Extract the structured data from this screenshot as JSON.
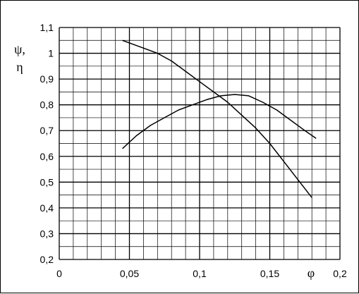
{
  "chart_data": {
    "type": "line",
    "title": "",
    "xlabel": "φ",
    "ylabel_lines": [
      "ψ,",
      "η"
    ],
    "xlim": [
      0,
      0.2
    ],
    "ylim": [
      0.2,
      1.1
    ],
    "x_ticks": [
      {
        "value": 0,
        "label": "0"
      },
      {
        "value": 0.05,
        "label": "0,05"
      },
      {
        "value": 0.1,
        "label": "0,1"
      },
      {
        "value": 0.15,
        "label": "0,15"
      },
      {
        "value": 0.2,
        "label": "0,2"
      }
    ],
    "y_ticks": [
      {
        "value": 0.2,
        "label": "0,2"
      },
      {
        "value": 0.3,
        "label": "0,3"
      },
      {
        "value": 0.4,
        "label": "0,4"
      },
      {
        "value": 0.5,
        "label": "0,5"
      },
      {
        "value": 0.6,
        "label": "0,6"
      },
      {
        "value": 0.7,
        "label": "0,7"
      },
      {
        "value": 0.8,
        "label": "0,8"
      },
      {
        "value": 0.9,
        "label": "0,9"
      },
      {
        "value": 1.0,
        "label": "1"
      },
      {
        "value": 1.1,
        "label": "1,1"
      }
    ],
    "grid": {
      "minor_step_x": 0.01,
      "minor_step_y": 0.05,
      "major_step_x": 0.05,
      "major_step_y": 0.1
    },
    "legend": "none",
    "series": [
      {
        "x": [
          0.045,
          0.06,
          0.07,
          0.08,
          0.09,
          0.1,
          0.11,
          0.12,
          0.13,
          0.14,
          0.15,
          0.16,
          0.17,
          0.18
        ],
        "y": [
          1.05,
          1.02,
          1.0,
          0.97,
          0.93,
          0.89,
          0.85,
          0.81,
          0.76,
          0.71,
          0.65,
          0.58,
          0.51,
          0.44
        ]
      },
      {
        "x": [
          0.045,
          0.055,
          0.065,
          0.075,
          0.085,
          0.095,
          0.105,
          0.115,
          0.125,
          0.135,
          0.145,
          0.155,
          0.165,
          0.175,
          0.183
        ],
        "y": [
          0.63,
          0.68,
          0.72,
          0.75,
          0.78,
          0.8,
          0.82,
          0.835,
          0.84,
          0.835,
          0.81,
          0.78,
          0.74,
          0.7,
          0.67
        ]
      }
    ],
    "colors": {
      "grid": "#000000",
      "line": "#000000",
      "background": "#ffffff"
    }
  }
}
